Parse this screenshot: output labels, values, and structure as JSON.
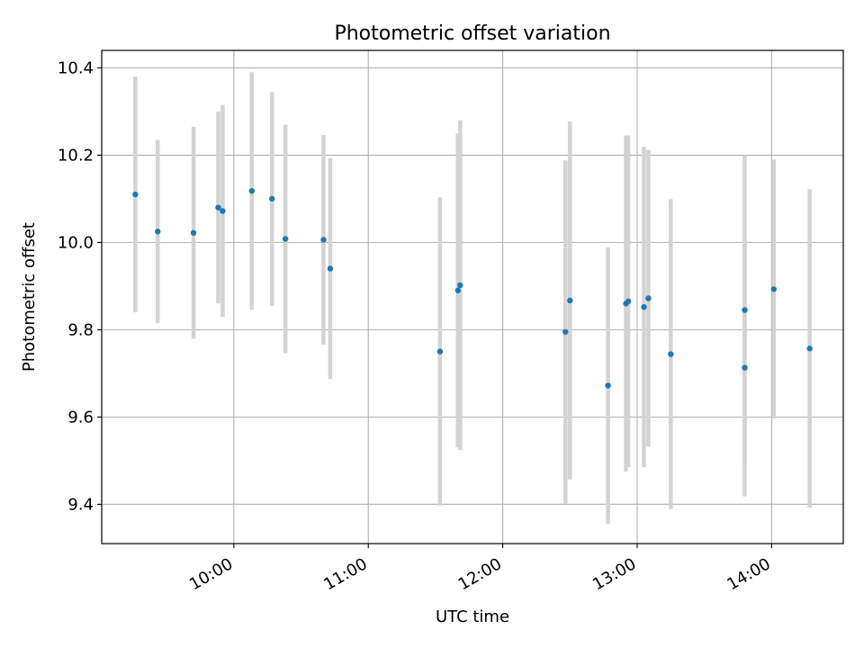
{
  "chart_data": {
    "type": "scatter",
    "title": "Photometric offset variation",
    "xlabel": "UTC time",
    "ylabel": "Photometric offset",
    "x_ticks": [
      "10:00",
      "11:00",
      "12:00",
      "13:00",
      "14:00"
    ],
    "y_ticks": [
      "9.4",
      "9.6",
      "9.8",
      "10.0",
      "10.2",
      "10.4"
    ],
    "x_range": [
      "09:01",
      "14:32"
    ],
    "ylim": [
      9.31,
      10.44
    ],
    "grid": true,
    "colors": {
      "points": "#1f77b4",
      "errorbars": "#d3d3d3",
      "grid": "#b0b0b0"
    },
    "points": [
      {
        "x": "09:16",
        "y": 10.11,
        "yerr": 0.27
      },
      {
        "x": "09:26",
        "y": 10.025,
        "yerr": 0.21
      },
      {
        "x": "09:42",
        "y": 10.022,
        "yerr": 0.243
      },
      {
        "x": "09:53",
        "y": 10.08,
        "yerr": 0.22
      },
      {
        "x": "09:55",
        "y": 10.072,
        "yerr": 0.243
      },
      {
        "x": "10:08",
        "y": 10.118,
        "yerr": 0.272
      },
      {
        "x": "10:17",
        "y": 10.1,
        "yerr": 0.245
      },
      {
        "x": "10:23",
        "y": 10.008,
        "yerr": 0.262
      },
      {
        "x": "10:40",
        "y": 10.006,
        "yerr": 0.24
      },
      {
        "x": "10:43",
        "y": 9.94,
        "yerr": 0.253
      },
      {
        "x": "11:32",
        "y": 9.75,
        "yerr": 0.353
      },
      {
        "x": "11:40",
        "y": 9.89,
        "yerr": 0.36
      },
      {
        "x": "11:41",
        "y": 9.902,
        "yerr": 0.378
      },
      {
        "x": "12:28",
        "y": 9.795,
        "yerr": 0.393
      },
      {
        "x": "12:30",
        "y": 9.867,
        "yerr": 0.41
      },
      {
        "x": "12:47",
        "y": 9.672,
        "yerr": 0.317
      },
      {
        "x": "12:55",
        "y": 9.86,
        "yerr": 0.385
      },
      {
        "x": "12:56",
        "y": 9.865,
        "yerr": 0.38
      },
      {
        "x": "13:03",
        "y": 9.852,
        "yerr": 0.367
      },
      {
        "x": "13:05",
        "y": 9.872,
        "yerr": 0.34
      },
      {
        "x": "13:15",
        "y": 9.744,
        "yerr": 0.355
      },
      {
        "x": "13:48",
        "y": 9.713,
        "yerr": 0.295
      },
      {
        "x": "13:48",
        "y": 9.845,
        "yerr": 0.355
      },
      {
        "x": "14:01",
        "y": 9.893,
        "yerr": 0.297
      },
      {
        "x": "14:17",
        "y": 9.757,
        "yerr": 0.365
      }
    ]
  }
}
